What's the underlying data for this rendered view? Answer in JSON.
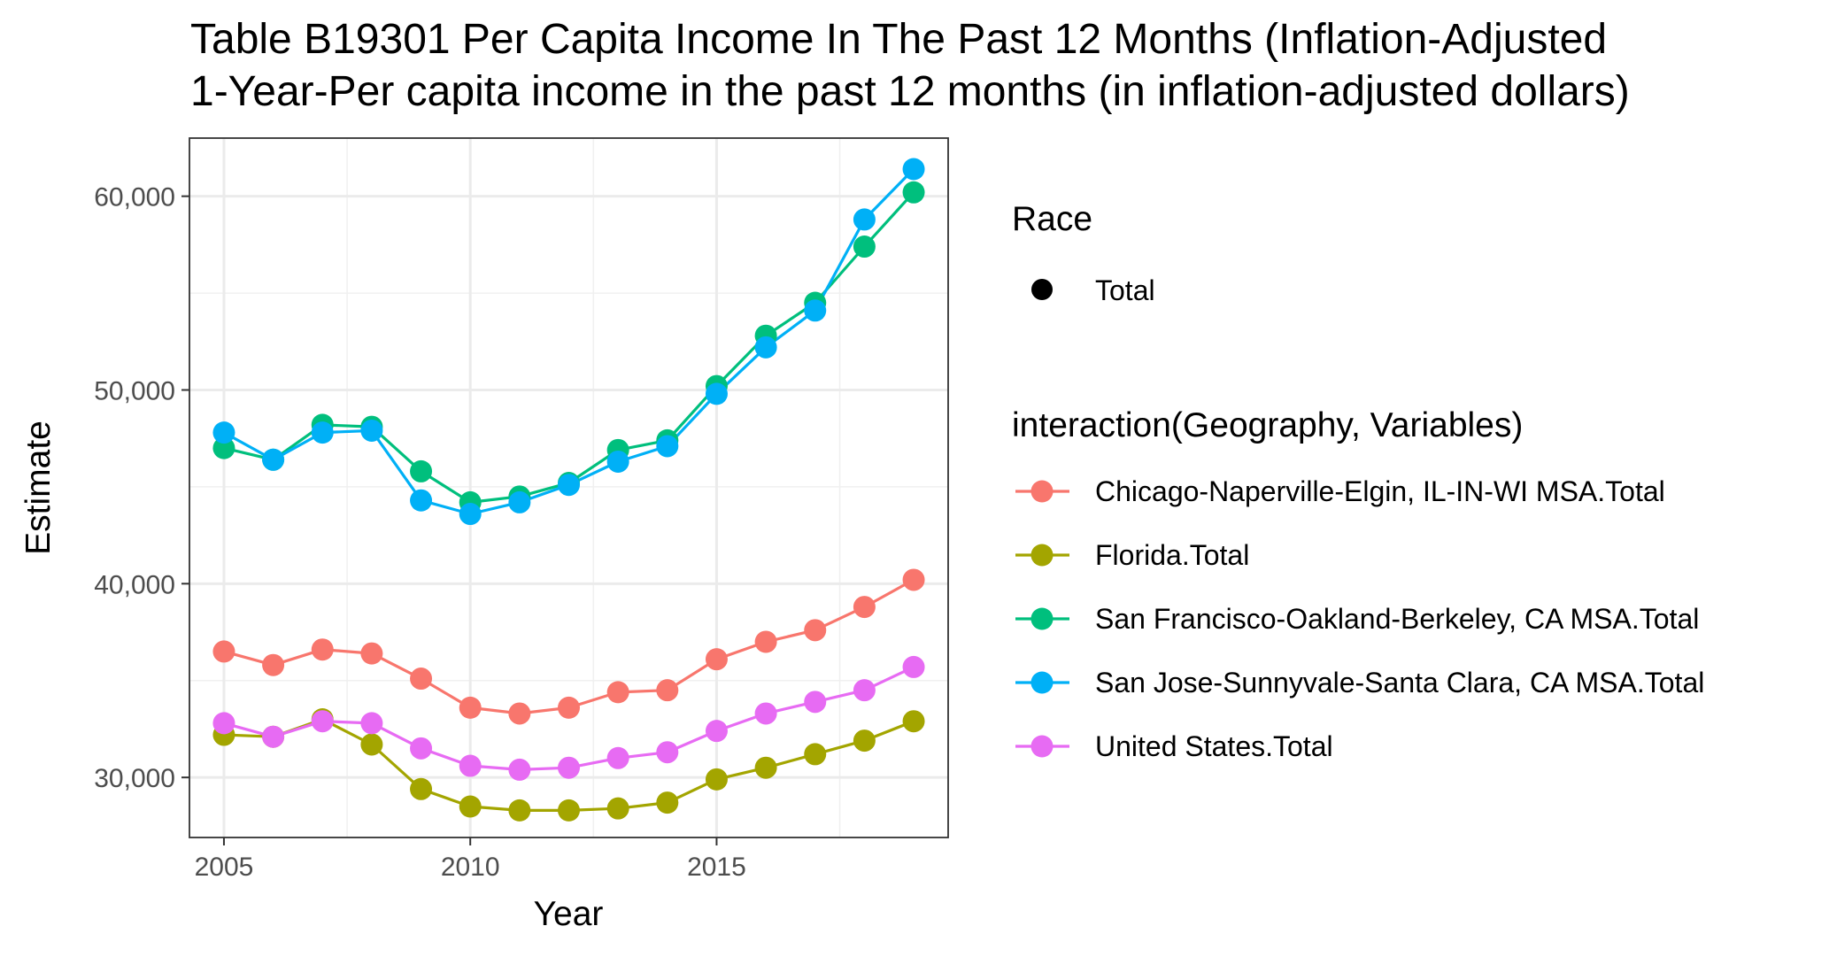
{
  "chart_data": {
    "type": "line",
    "title_lines": [
      "Table B19301 Per Capita Income In The Past 12 Months (Inflation-Adjusted",
      "1-Year-Per capita income in the past 12 months (in inflation-adjusted dollars)"
    ],
    "xlabel": "Year",
    "ylabel": "Estimate",
    "xlim": [
      2004.3,
      2019.7
    ],
    "ylim": [
      26900,
      63000
    ],
    "x_ticks": [
      2005,
      2010,
      2015
    ],
    "x_tick_labels": [
      "2005",
      "2010",
      "2015"
    ],
    "y_ticks": [
      30000,
      40000,
      50000,
      60000
    ],
    "y_tick_labels": [
      "30,000",
      "40,000",
      "50,000",
      "60,000"
    ],
    "grid": true,
    "legend_placement": "right",
    "x": [
      2005,
      2006,
      2007,
      2008,
      2009,
      2010,
      2011,
      2012,
      2013,
      2014,
      2015,
      2016,
      2017,
      2018,
      2019
    ],
    "legend_race": {
      "title": "Race",
      "entries": [
        {
          "label": "Total",
          "color": "#000000"
        }
      ]
    },
    "legend_series_title": "interaction(Geography, Variables)",
    "series": [
      {
        "name": "Chicago-Naperville-Elgin, IL-IN-WI MSA.Total",
        "color": "#F8766D",
        "values": [
          36500,
          35800,
          36600,
          36400,
          35100,
          33600,
          33300,
          33600,
          34400,
          34500,
          36100,
          37000,
          37600,
          38800,
          40200
        ]
      },
      {
        "name": "Florida.Total",
        "color": "#A3A500",
        "values": [
          32200,
          32100,
          33000,
          31700,
          29400,
          28500,
          28300,
          28300,
          28400,
          28700,
          29900,
          30500,
          31200,
          31900,
          32900
        ]
      },
      {
        "name": "San Francisco-Oakland-Berkeley, CA MSA.Total",
        "color": "#00BF7D",
        "values": [
          47000,
          46400,
          48200,
          48100,
          45800,
          44200,
          44500,
          45200,
          46900,
          47400,
          50200,
          52800,
          54500,
          57400,
          60200
        ]
      },
      {
        "name": "San Jose-Sunnyvale-Santa Clara, CA MSA.Total",
        "color": "#00B0F6",
        "values": [
          47800,
          46400,
          47800,
          47900,
          44300,
          43600,
          44200,
          45100,
          46300,
          47100,
          49800,
          52200,
          54100,
          58800,
          61400
        ]
      },
      {
        "name": "United States.Total",
        "color": "#E76BF3",
        "values": [
          32800,
          32100,
          32900,
          32800,
          31500,
          30600,
          30400,
          30500,
          31000,
          31300,
          32400,
          33300,
          33900,
          34500,
          35700
        ]
      }
    ]
  }
}
